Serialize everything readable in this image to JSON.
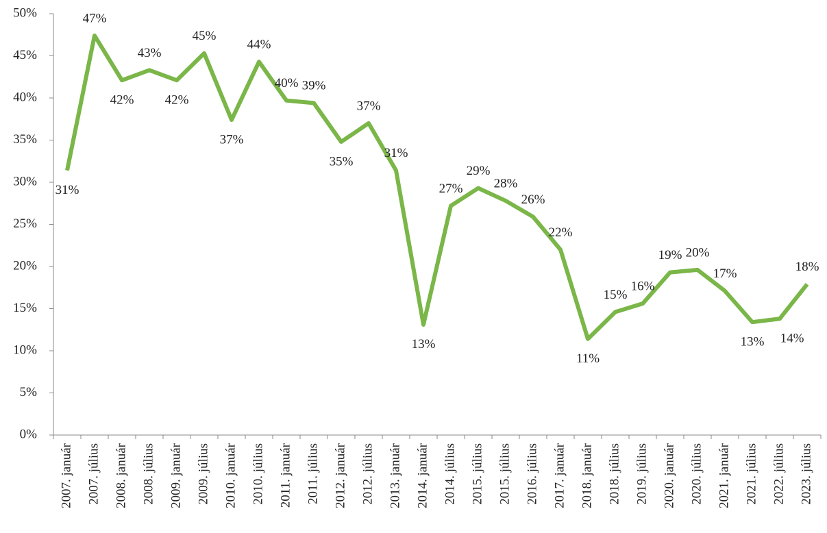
{
  "chart_data": {
    "type": "line",
    "categories": [
      "2007. január",
      "2007. július",
      "2008. január",
      "2008. július",
      "2009. január",
      "2009. július",
      "2010. január",
      "2010. július",
      "2011. január",
      "2011. július",
      "2012. január",
      "2012. július",
      "2013. január",
      "2014. január",
      "2014. július",
      "2015. július",
      "2015. július",
      "2016. július",
      "2017. január",
      "2018. január",
      "2018. július",
      "2019. július",
      "2020. január",
      "2020. július",
      "2021. január",
      "2021. július",
      "2022. július",
      "2023. július"
    ],
    "series": [
      {
        "color": "#7ab648",
        "values": [
          31.4,
          47.4,
          42.1,
          43.3,
          42.1,
          45.3,
          37.4,
          44.3,
          39.7,
          39.4,
          34.8,
          37.0,
          31.4,
          13.1,
          27.2,
          29.3,
          27.8,
          25.9,
          22.0,
          11.4,
          14.6,
          15.6,
          19.3,
          19.6,
          17.1,
          13.4,
          13.8,
          17.9
        ],
        "value_labels": [
          "31%",
          "47%",
          "42%",
          "43%",
          "42%",
          "45%",
          "37%",
          "44%",
          "40%",
          "39%",
          "35%",
          "37%",
          "31%",
          "13%",
          "27%",
          "29%",
          "28%",
          "26%",
          "22%",
          "11%",
          "15%",
          "16%",
          "19%",
          "20%",
          "17%",
          "13%",
          "14%",
          "18%"
        ]
      }
    ],
    "ylim": [
      0,
      50
    ],
    "yticks": [
      {
        "value": 0,
        "label": "0%"
      },
      {
        "value": 5,
        "label": "5%"
      },
      {
        "value": 10,
        "label": "10%"
      },
      {
        "value": 15,
        "label": "15%"
      },
      {
        "value": 20,
        "label": "20%"
      },
      {
        "value": 25,
        "label": "25%"
      },
      {
        "value": 30,
        "label": "30%"
      },
      {
        "value": 35,
        "label": "35%"
      },
      {
        "value": 40,
        "label": "40%"
      },
      {
        "value": 45,
        "label": "45%"
      },
      {
        "value": 50,
        "label": "50%"
      }
    ],
    "grid": false
  }
}
